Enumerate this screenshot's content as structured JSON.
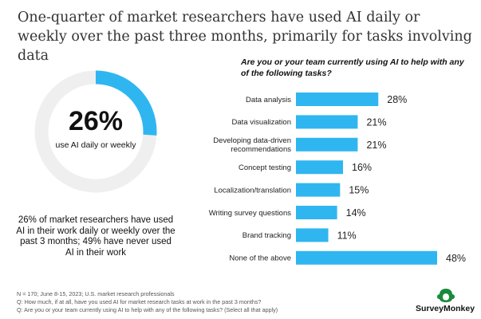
{
  "title": "One-quarter of market researchers have used AI daily or weekly over the past three months, primarily for tasks involving data",
  "donut": {
    "percent_label": "26%",
    "value": 26,
    "sublabel": "use AI daily or weekly",
    "fill_color": "#2fb6f0",
    "track_color": "#efefef"
  },
  "summary": "26% of market researchers have used AI in their work daily or weekly over the past 3 months; 49% have never used AI in their work",
  "chart_data": {
    "type": "bar",
    "orientation": "horizontal",
    "title": "Are you or your team currently using AI to help with any of the following tasks?",
    "categories": [
      "Data analysis",
      "Data visualization",
      "Developing data-driven recommendations",
      "Concept testing",
      "Localization/translation",
      "Writing survey questions",
      "Brand tracking",
      "None of the above"
    ],
    "category_lines": [
      [
        "Data analysis"
      ],
      [
        "Data visualization"
      ],
      [
        "Developing data-driven",
        "recommendations"
      ],
      [
        "Concept testing"
      ],
      [
        "Localization/translation"
      ],
      [
        "Writing survey questions"
      ],
      [
        "Brand tracking"
      ],
      [
        "None of the above"
      ]
    ],
    "values": [
      28,
      21,
      21,
      16,
      15,
      14,
      11,
      48
    ],
    "value_labels": [
      "28%",
      "21%",
      "21%",
      "16%",
      "15%",
      "14%",
      "11%",
      "48%"
    ],
    "xlim": [
      0,
      48
    ],
    "bar_color": "#2fb6f0"
  },
  "footnotes": [
    "N = 170; June 8-15, 2023; U.S. market research professionals",
    "Q: How much, if at all, have you used AI for market research tasks at work in the past 3 months?",
    "Q: Are you or your team currently using AI to help with any of the following tasks? (Select all that apply)"
  ],
  "brand": {
    "name": "SurveyMonkey",
    "logo_color": "#1a8a3c"
  }
}
